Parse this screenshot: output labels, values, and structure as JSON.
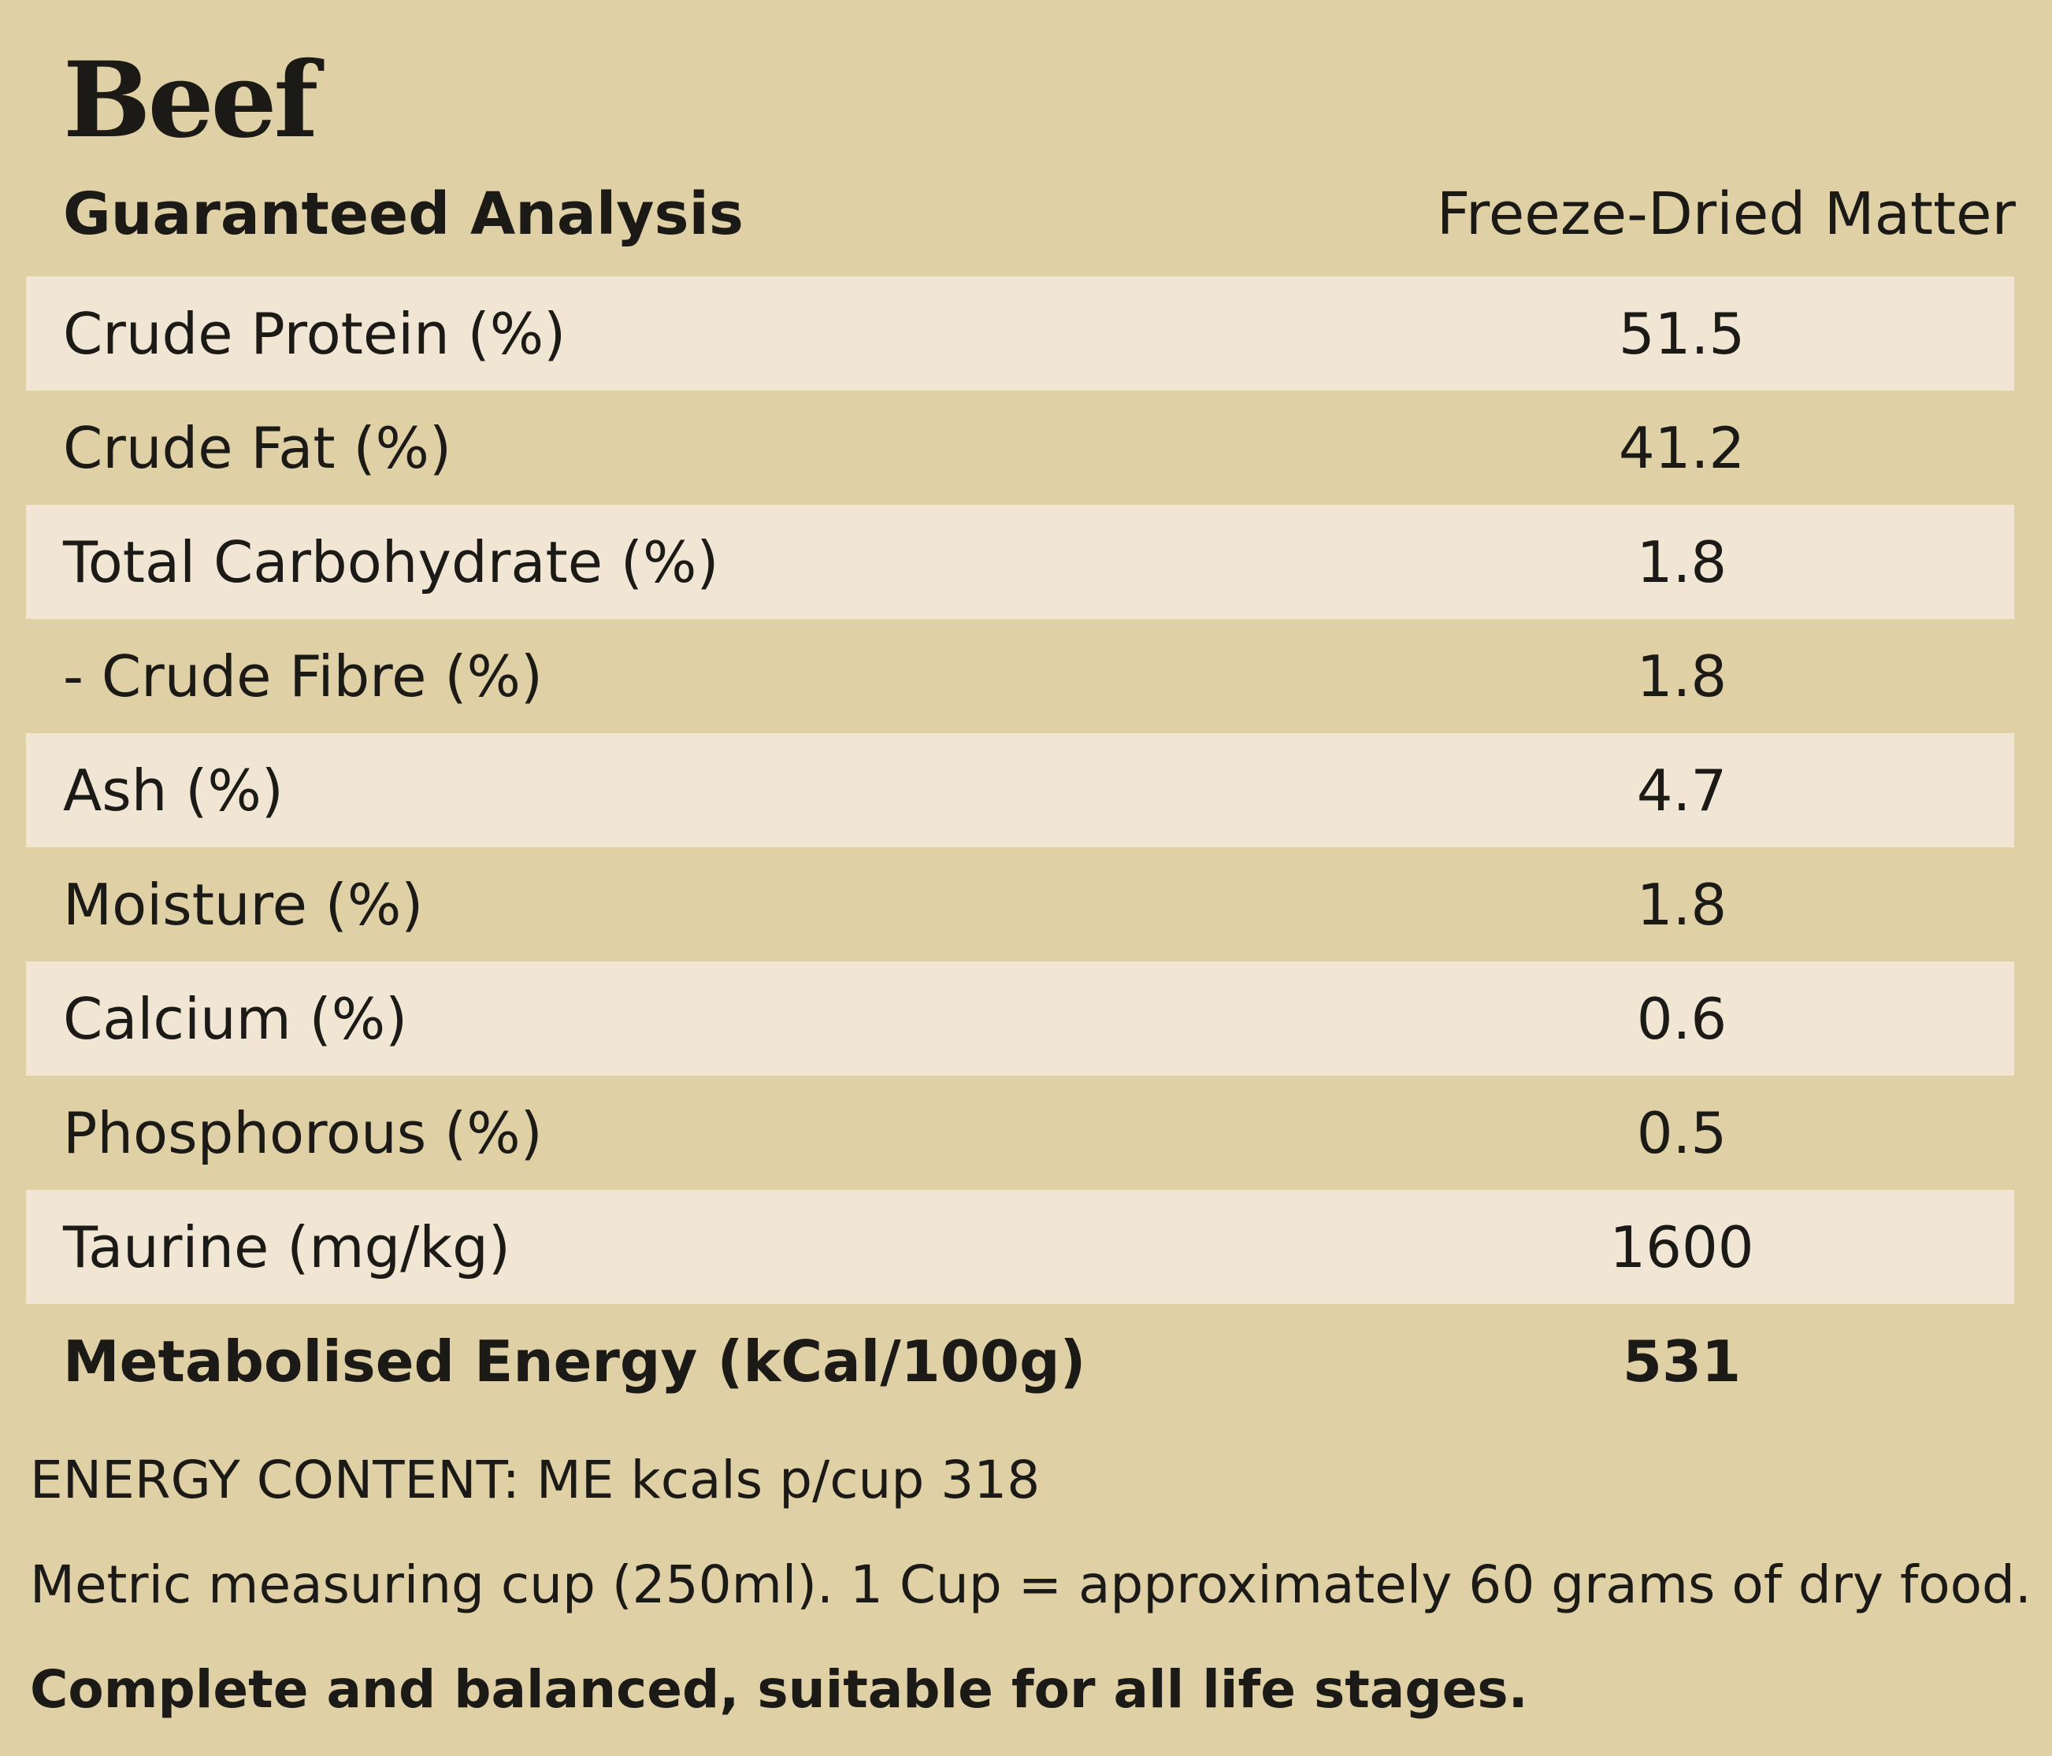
{
  "title": "Beef",
  "header": {
    "left": "Guaranteed Analysis",
    "right": "Freeze-Dried Matter"
  },
  "rows": [
    {
      "label": "Crude Protein (%)",
      "value": "51.5"
    },
    {
      "label": "Crude Fat (%)",
      "value": "41.2"
    },
    {
      "label": "Total Carbohydrate (%)",
      "value": "1.8"
    },
    {
      "label": "- Crude Fibre (%)",
      "value": "1.8"
    },
    {
      "label": "Ash (%)",
      "value": "4.7"
    },
    {
      "label": "Moisture (%)",
      "value": "1.8"
    },
    {
      "label": "Calcium (%)",
      "value": "0.6"
    },
    {
      "label": "Phosphorous (%)",
      "value": "0.5"
    },
    {
      "label": "Taurine (mg/kg)",
      "value": "1600"
    },
    {
      "label": "Metabolised Energy (kCal/100g)",
      "value": "531"
    }
  ],
  "notes": {
    "energy_content": "ENERGY CONTENT: ME kcals p/cup 318",
    "cup_info": "Metric measuring cup (250ml). 1 Cup = approximately 60 grams of dry food.",
    "life_stages": "Complete and balanced, suitable for all life stages."
  },
  "colors": {
    "background": "#e0d0a5",
    "row_shade": "#f0e6d3",
    "text": "#1b1a17"
  }
}
